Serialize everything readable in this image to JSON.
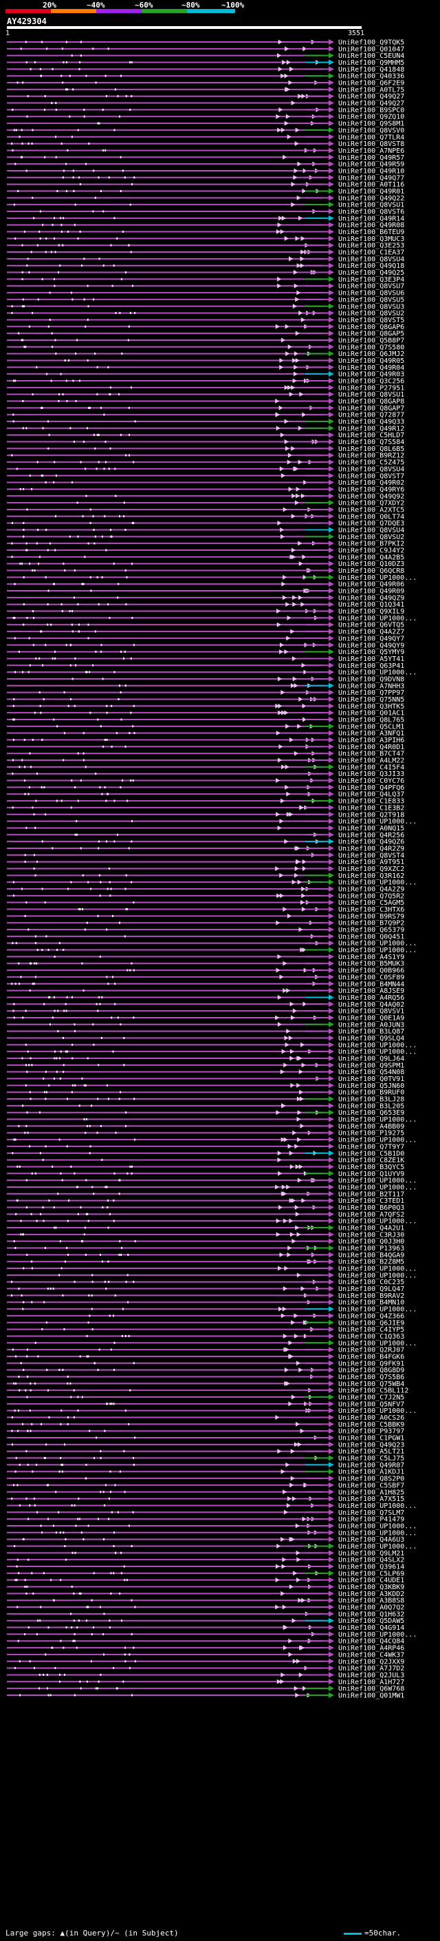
{
  "legend": {
    "ticks": [
      "20%",
      "~40%",
      "~60%",
      "~80%",
      "~100%"
    ],
    "colors": [
      "#e3001b",
      "#ff7b00",
      "#a020f0",
      "#27a427",
      "#00bcd4"
    ]
  },
  "query": {
    "title": "AY429304",
    "start": "1",
    "end": "3551"
  },
  "colors": {
    "hit_main": "#b54ec1",
    "hit_green": "#27a427",
    "hit_cyan": "#00bcd4",
    "arrow_light": "#e9c6ee",
    "gap_white": "#ffffff"
  },
  "hits": [
    "UniRef100_Q9TQK5",
    "UniRef100_Q01047",
    "UniRef100_C5EUN4",
    "UniRef100_Q9MHM5",
    "UniRef100_Q41848",
    "UniRef100_Q40336",
    "UniRef100_Q6F2E9",
    "UniRef100_A0TL75",
    "UniRef100_Q49Q27",
    "UniRef100_Q49Q27",
    "UniRef100_B9SPC0",
    "UniRef100_Q9ZQ10",
    "UniRef100_Q9S8M1",
    "UniRef100_Q8VSV0",
    "UniRef100_Q7TLR4",
    "UniRef100_Q8VST8",
    "UniRef100_A7NPE6",
    "UniRef100_Q49R57",
    "UniRef100_Q49R59",
    "UniRef100_Q49R10",
    "UniRef100_Q49Q77",
    "UniRef100_A0T116",
    "UniRef100_Q49R01",
    "UniRef100_Q49Q22",
    "UniRef100_Q8VSU1",
    "UniRef100_Q8VST6",
    "UniRef100_Q49R14",
    "UniRef100_Q49R08",
    "UniRef100_B6TEU9",
    "UniRef100_Q3MUC3",
    "UniRef100_Q3E253",
    "UniRef100_C1EA37",
    "UniRef100_Q8VSU4",
    "UniRef100_Q49Q18",
    "UniRef100_Q49Q25",
    "UniRef100_Q3E3P4",
    "UniRef100_Q8VSU7",
    "UniRef100_Q8VSU6",
    "UniRef100_Q8VSU5",
    "UniRef100_Q8VSU3",
    "UniRef100_Q8VSU2",
    "UniRef100_Q8VST5",
    "UniRef100_Q8GAP6",
    "UniRef100_Q8GAP5",
    "UniRef100_Q5B8P7",
    "UniRef100_Q7S580",
    "UniRef100_Q6JMJ2",
    "UniRef100_Q49R05",
    "UniRef100_Q49R04",
    "UniRef100_Q49R03",
    "UniRef100_Q3C256",
    "UniRef100_P27951",
    "UniRef100_Q8VSU1",
    "UniRef100_Q8GAP8",
    "UniRef100_Q8GAP7",
    "UniRef100_Q72877",
    "UniRef100_Q49Q33",
    "UniRef100_Q49R12",
    "UniRef100_C5HLD7",
    "UniRef100_Q7S584",
    "UniRef100_Q8L6B5",
    "UniRef100_B9RZ12",
    "UniRef100_C5Z475",
    "UniRef100_Q8VSU4",
    "UniRef100_Q8VST7",
    "UniRef100_Q49R02",
    "UniRef100_Q49RY6",
    "UniRef100_Q49Q92",
    "UniRef100_Q7XDY2",
    "UniRef100_A2XTC5",
    "UniRef100_Q0LT74",
    "UniRef100_Q7DQE3",
    "UniRef100_Q8VSU4",
    "UniRef100_Q8VSU2",
    "UniRef100_B7PKI2",
    "UniRef100_C9J4Y2",
    "UniRef100_Q4A2B5",
    "UniRef100_Q10DZ3",
    "UniRef100_Q6QCR8",
    "UniRef100_UP1000...",
    "UniRef100_Q49R06",
    "UniRef100_Q49R09",
    "UniRef100_Q49QZ9",
    "UniRef100_Q1Q341",
    "UniRef100_Q9XIL9",
    "UniRef100_UP1000...",
    "UniRef100_Q6VTQ5",
    "UniRef100_Q4A2Z7",
    "UniRef100_Q49QY7",
    "UniRef100_Q49QY9",
    "UniRef100_Q5YMY9",
    "UniRef100_A5YT41",
    "UniRef100_Q63P41",
    "UniRef100_UP1000...",
    "UniRef100_Q9DVN8",
    "UniRef100_A7NHH3",
    "UniRef100_Q7PP97",
    "UniRef100_Q75NN5",
    "UniRef100_Q3HTK5",
    "UniRef100_Q01AC1",
    "UniRef100_Q8L765",
    "UniRef100_Q5CLM1",
    "UniRef100_A3NFQ1",
    "UniRef100_A3PIH6",
    "UniRef100_Q4R0D1",
    "UniRef100_B7CT47",
    "UniRef100_A4LM22",
    "UniRef100_C4I5F4",
    "UniRef100_Q3JI33",
    "UniRef100_C0YC76",
    "UniRef100_Q4PFQ6",
    "UniRef100_Q4LQ37",
    "UniRef100_C1E833",
    "UniRef100_C1E3B2",
    "UniRef100_Q2T918",
    "UniRef100_UP1000...",
    "UniRef100_A0NQ15",
    "UniRef100_Q4R256",
    "UniRef100_Q49QZ6",
    "UniRef100_Q4R2Z9",
    "UniRef100_Q8VST4",
    "UniRef100_A9T951",
    "UniRef100_Q9XZC2",
    "UniRef100_Q3R162",
    "UniRef100_UP1000...",
    "UniRef100_Q4A2Z9",
    "UniRef100_Q7Q5R2",
    "UniRef100_C5AGM5",
    "UniRef100_C3HTX6",
    "UniRef100_B9RS79",
    "UniRef100_B7Q9P2",
    "UniRef100_Q65379",
    "UniRef100_Q0Q451",
    "UniRef100_UP1000...",
    "UniRef100_UP1000...",
    "UniRef100_A4S1Y9",
    "UniRef100_B5MUK3",
    "UniRef100_Q0B966",
    "UniRef100_C0SF89",
    "UniRef100_B4MN44",
    "UniRef100_A8JSE9",
    "UniRef100_A4RQ56",
    "UniRef100_Q4AQ02",
    "UniRef100_Q8VSV1",
    "UniRef100_Q0E1A9",
    "UniRef100_A0JUN3",
    "UniRef100_B3LQ87",
    "UniRef100_Q9SLQ4",
    "UniRef100_UP1000...",
    "UniRef100_UP1000...",
    "UniRef100_Q9LJ64",
    "UniRef100_Q9SPM1",
    "UniRef100_Q54N08",
    "UniRef100_Q0TV91",
    "UniRef100_Q5JN60",
    "UniRef100_B9RUF0",
    "UniRef100_B3LJ28",
    "UniRef100_B3L205",
    "UniRef100_Q653E9",
    "UniRef100_UP1000...",
    "UniRef100_A4BB09",
    "UniRef100_P19275",
    "UniRef100_UP1000...",
    "UniRef100_Q7T9Y7",
    "UniRef100_C5B1D0",
    "UniRef100_C8ZE1K",
    "UniRef100_B3QYC5",
    "UniRef100_Q1UYV9",
    "UniRef100_UP1000...",
    "UniRef100_UP1000...",
    "UniRef100_B2T117",
    "UniRef100_C3TED1",
    "UniRef100_B6P0Q3",
    "UniRef100_A7QFS2",
    "UniRef100_UP1000...",
    "UniRef100_Q4A2U1",
    "UniRef100_C3RJ30",
    "UniRef100_Q0J3H0",
    "UniRef100_P13963",
    "UniRef100_B4QGA9",
    "UniRef100_B2Z8M5",
    "UniRef100_UP1000...",
    "UniRef100_UP1000...",
    "UniRef100_C0C235",
    "UniRef100_Q9LQ47",
    "UniRef100_B9RAV2",
    "UniRef100_B4MN10",
    "UniRef100_UP1000...",
    "UniRef100_Q4Z366",
    "UniRef100_Q6JIE9",
    "UniRef100_C4IYP5",
    "UniRef100_C1Q363",
    "UniRef100_UP1000...",
    "UniRef100_Q2RJ07",
    "UniRef100_B4FGK6",
    "UniRef100_Q9FK91",
    "UniRef100_Q8G8D9",
    "UniRef100_Q7S5B6",
    "UniRef100_Q75WB4",
    "UniRef100_C5BL112",
    "UniRef100_C7J2N5",
    "UniRef100_Q5NFV7",
    "UniRef100_UP1000...",
    "UniRef100_A0CS26",
    "UniRef100_C5BBK9",
    "UniRef100_P93797",
    "UniRef100_C1PGW1",
    "UniRef100_Q49Q23",
    "UniRef100_A5LT21",
    "UniRef100_C5LJ75",
    "UniRef100_Q49R07",
    "UniRef100_A1KDJ1",
    "UniRef100_Q8S2P0",
    "UniRef100_C5SBF7",
    "UniRef100_A1H825",
    "UniRef100_A7X515",
    "UniRef100_UP1000...",
    "UniRef100_Q7SLM7",
    "UniRef100_P41479",
    "UniRef100_UP1000...",
    "UniRef100_UP1000...",
    "UniRef100_Q4A6U3",
    "UniRef100_UP1000...",
    "UniRef100_Q9LM21",
    "UniRef100_Q4SLX2",
    "UniRef100_Q39614",
    "UniRef100_C5LP69",
    "UniRef100_C4UDE1",
    "UniRef100_Q3KBK9",
    "UniRef100_A3KDD2",
    "UniRef100_A3B8S8",
    "UniRef100_A0Q7Q2",
    "UniRef100_Q1H632",
    "UniRef100_Q5DAW5",
    "UniRef100_Q4G914",
    "UniRef100_UP1000...",
    "UniRef100_Q4CQ84",
    "UniRef100_A4RP46",
    "UniRef100_C4WK37",
    "UniRef100_Q2JXX9",
    "UniRef100_A7J7D2",
    "UniRef100_Q2JUL3",
    "UniRef100_A1H727",
    "UniRef100_Q6W768",
    "UniRef100_Q01MW1"
  ],
  "footer": {
    "gaps_text": "Large gaps: ▲(in Query)/~ (in Subject)",
    "scale_text": "=50char."
  }
}
